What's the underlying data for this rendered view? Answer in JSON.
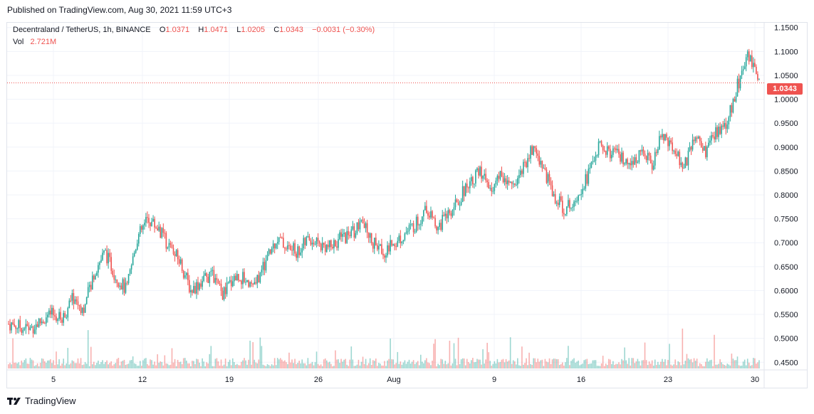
{
  "header": {
    "published_text": "Published on TradingView.com, Aug 30, 2021 11:59 UTC+3"
  },
  "legend": {
    "symbol": "Decentraland / TetherUS, 1h, BINANCE",
    "o_label": "O",
    "o_value": "1.0371",
    "h_label": "H",
    "h_value": "1.0471",
    "l_label": "L",
    "l_value": "1.0205",
    "c_label": "C",
    "c_value": "1.0343",
    "change": "−0.0031 (−0.30%)",
    "vol_label": "Vol",
    "vol_value": "2.721M"
  },
  "price_badge": "1.0343",
  "footer": {
    "brand": "TradingView"
  },
  "colors": {
    "up": "#26a69a",
    "down": "#ef5350",
    "grid": "#f0f3fa",
    "text": "#131722"
  },
  "chart_data": {
    "type": "candlestick",
    "symbol": "Decentraland / TetherUS",
    "interval": "1h",
    "exchange": "BINANCE",
    "y_axis_ticks": [
      "1.1500",
      "1.1000",
      "1.0500",
      "1.0000",
      "0.9500",
      "0.9000",
      "0.8500",
      "0.8000",
      "0.7500",
      "0.7000",
      "0.6500",
      "0.6000",
      "0.5500",
      "0.5000",
      "0.4500"
    ],
    "ylim": [
      0.44,
      1.16
    ],
    "x_axis_ticks": [
      "5",
      "12",
      "19",
      "26",
      "Aug",
      "9",
      "16",
      "23",
      "30"
    ],
    "current_price": 1.0343,
    "grid": true,
    "series_points": [
      [
        0,
        0.53
      ],
      [
        2,
        0.52
      ],
      [
        4,
        0.55
      ],
      [
        5,
        0.54
      ],
      [
        6,
        0.585
      ],
      [
        7,
        0.56
      ],
      [
        8,
        0.64
      ],
      [
        9,
        0.68
      ],
      [
        10,
        0.63
      ],
      [
        11,
        0.6
      ],
      [
        12,
        0.71
      ],
      [
        13,
        0.75
      ],
      [
        14,
        0.73
      ],
      [
        15,
        0.69
      ],
      [
        16,
        0.66
      ],
      [
        17,
        0.6
      ],
      [
        18,
        0.62
      ],
      [
        19,
        0.63
      ],
      [
        20,
        0.59
      ],
      [
        21,
        0.63
      ],
      [
        22,
        0.625
      ],
      [
        23,
        0.61
      ],
      [
        24,
        0.66
      ],
      [
        25,
        0.71
      ],
      [
        26,
        0.69
      ],
      [
        27,
        0.68
      ],
      [
        28,
        0.71
      ],
      [
        29,
        0.695
      ],
      [
        30,
        0.69
      ],
      [
        31,
        0.71
      ],
      [
        32,
        0.72
      ],
      [
        33,
        0.74
      ],
      [
        34,
        0.7
      ],
      [
        35,
        0.68
      ],
      [
        36,
        0.7
      ],
      [
        37,
        0.72
      ],
      [
        38,
        0.74
      ],
      [
        39,
        0.77
      ],
      [
        40,
        0.73
      ],
      [
        41,
        0.76
      ],
      [
        42,
        0.79
      ],
      [
        43,
        0.83
      ],
      [
        44,
        0.85
      ],
      [
        45,
        0.81
      ],
      [
        46,
        0.84
      ],
      [
        47,
        0.82
      ],
      [
        48,
        0.86
      ],
      [
        49,
        0.9
      ],
      [
        50,
        0.85
      ],
      [
        51,
        0.79
      ],
      [
        52,
        0.77
      ],
      [
        53,
        0.8
      ],
      [
        54,
        0.84
      ],
      [
        55,
        0.9
      ],
      [
        56,
        0.89
      ],
      [
        57,
        0.88
      ],
      [
        58,
        0.85
      ],
      [
        59,
        0.9
      ],
      [
        60,
        0.86
      ],
      [
        61,
        0.93
      ],
      [
        62,
        0.9
      ],
      [
        63,
        0.86
      ],
      [
        64,
        0.92
      ],
      [
        65,
        0.89
      ],
      [
        66,
        0.93
      ],
      [
        67,
        0.95
      ],
      [
        68,
        1.03
      ],
      [
        69,
        1.09
      ],
      [
        70,
        1.0343
      ]
    ]
  }
}
